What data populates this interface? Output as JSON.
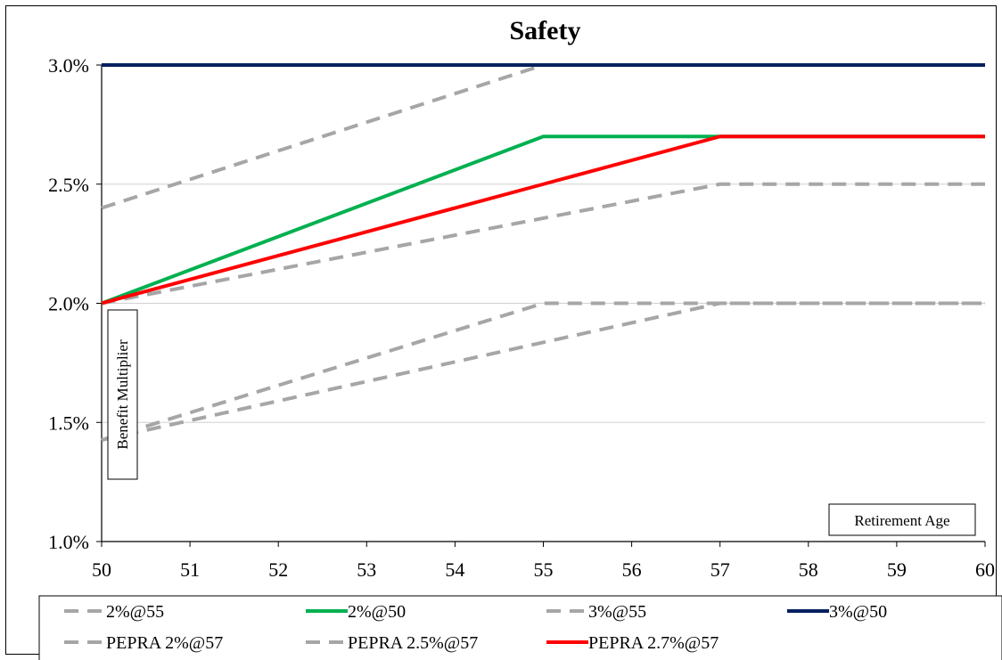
{
  "chart_data": {
    "type": "line",
    "title": "Safety",
    "xlabel": "Retirement Age",
    "ylabel": "Benefit Multiplier",
    "x": [
      50,
      51,
      52,
      53,
      54,
      55,
      56,
      57,
      58,
      59,
      60
    ],
    "xlim": [
      50,
      60
    ],
    "ylim": [
      1.0,
      3.0
    ],
    "y_ticks": [
      "1.0%",
      "1.5%",
      "2.0%",
      "2.5%",
      "3.0%"
    ],
    "x_ticks": [
      "50",
      "51",
      "52",
      "53",
      "54",
      "55",
      "56",
      "57",
      "58",
      "59",
      "60"
    ],
    "grid": "horizontal",
    "legend_position": "bottom",
    "series": [
      {
        "name": "2%@55",
        "color": "#a6a6a6",
        "dash": true,
        "x": [
          50,
          55,
          60
        ],
        "y": [
          1.426,
          2.0,
          2.0
        ]
      },
      {
        "name": "2%@50",
        "color": "#00b050",
        "dash": false,
        "x": [
          50,
          55,
          60
        ],
        "y": [
          2.0,
          2.7,
          2.7
        ]
      },
      {
        "name": "3%@55",
        "color": "#a6a6a6",
        "dash": true,
        "x": [
          50,
          55,
          60
        ],
        "y": [
          2.4,
          3.0,
          3.0
        ]
      },
      {
        "name": "3%@50",
        "color": "#002060",
        "dash": false,
        "x": [
          50,
          60
        ],
        "y": [
          3.0,
          3.0
        ]
      },
      {
        "name": "PEPRA 2%@57",
        "color": "#a6a6a6",
        "dash": true,
        "x": [
          50,
          57,
          60
        ],
        "y": [
          1.426,
          2.0,
          2.0
        ]
      },
      {
        "name": "PEPRA 2.5%@57",
        "color": "#a6a6a6",
        "dash": true,
        "x": [
          50,
          57,
          60
        ],
        "y": [
          2.0,
          2.5,
          2.5
        ]
      },
      {
        "name": "PEPRA 2.7%@57",
        "color": "#ff0000",
        "dash": false,
        "x": [
          50,
          55,
          56,
          57,
          60
        ],
        "y": [
          2.0,
          2.5,
          2.6,
          2.7,
          2.7
        ]
      }
    ]
  }
}
